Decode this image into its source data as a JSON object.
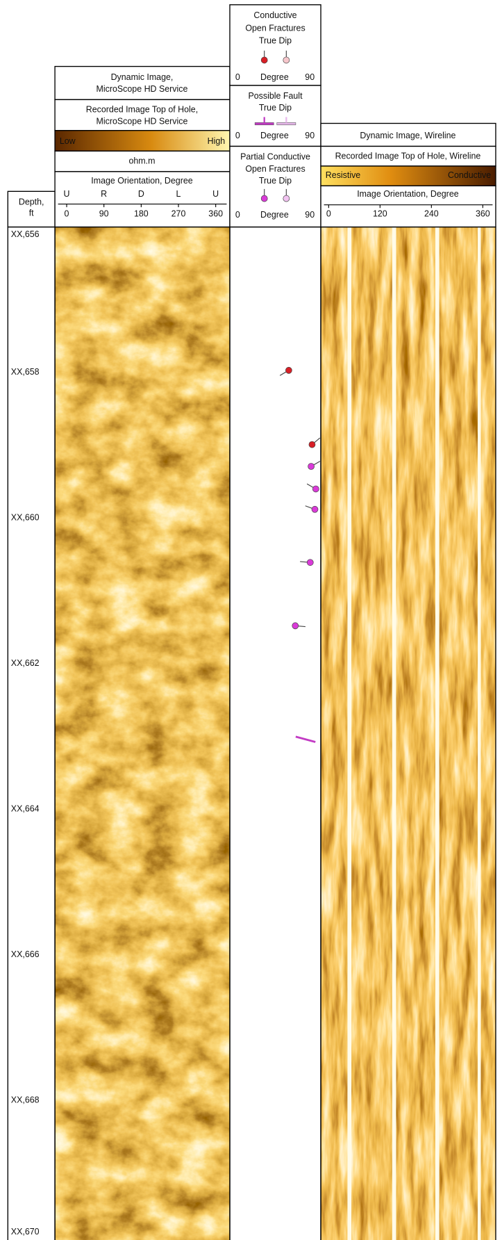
{
  "depth_track": {
    "title": [
      "Depth,",
      "ft"
    ],
    "range": [
      656,
      669.92
    ],
    "ticks": [
      {
        "value": 656,
        "label": "XX,656"
      },
      {
        "value": 658,
        "label": "XX,658"
      },
      {
        "value": 660,
        "label": "XX,660"
      },
      {
        "value": 662,
        "label": "XX,662"
      },
      {
        "value": 664,
        "label": "XX,664"
      },
      {
        "value": 666,
        "label": "XX,666"
      },
      {
        "value": 668,
        "label": "XX,668"
      },
      {
        "value": 670,
        "label": "XX,670"
      }
    ]
  },
  "microscope_track": {
    "title": [
      "Dynamic Image,",
      "MicroScope HD Service"
    ],
    "subtitle": [
      "Recorded Image Top of Hole,",
      "MicroScope HD Service"
    ],
    "scale_low": "Low",
    "scale_high": "High",
    "unit": "ohm.m",
    "orientation_title": "Image Orientation, Degree",
    "orientation_letters": [
      "U",
      "R",
      "D",
      "L",
      "U"
    ],
    "orientation_ticks": [
      0,
      90,
      180,
      270,
      360
    ]
  },
  "dip_track": {
    "axis": {
      "min": 0,
      "label": "Degree",
      "max": 90
    },
    "legends": [
      {
        "title": [
          "Conductive",
          "Open Fractures",
          "True Dip"
        ],
        "colors": [
          "#d81f26",
          "#f6c6cb"
        ]
      },
      {
        "title": [
          "Possible Fault",
          "True Dip"
        ],
        "colors": [
          "#c23bc4",
          "#e7b8ea"
        ]
      },
      {
        "title": [
          "Partial Conductive",
          "Open Fractures",
          "True Dip"
        ],
        "colors": [
          "#d93ad8",
          "#f2c3f1"
        ]
      }
    ]
  },
  "wireline_track": {
    "title": "Dynamic Image, Wireline",
    "subtitle": "Recorded Image Top of Hole, Wireline",
    "scale_left": "Resistive",
    "scale_right": "Conductive",
    "orientation_title": "Image Orientation, Degree",
    "orientation_ticks": [
      0,
      120,
      240,
      360
    ]
  },
  "dips": [
    {
      "kind": 0,
      "depth": 657.97,
      "dip": 59,
      "azimuth": 240
    },
    {
      "kind": 0,
      "depth": 658.99,
      "dip": 84,
      "azimuth": 50
    },
    {
      "kind": 2,
      "depth": 659.29,
      "dip": 83,
      "azimuth": 60
    },
    {
      "kind": 2,
      "depth": 659.6,
      "dip": 88,
      "azimuth": 300
    },
    {
      "kind": 2,
      "depth": 659.88,
      "dip": 87,
      "azimuth": 290
    },
    {
      "kind": 2,
      "depth": 660.61,
      "dip": 82,
      "azimuth": 275
    },
    {
      "kind": 2,
      "depth": 661.48,
      "dip": 66,
      "azimuth": 95
    },
    {
      "kind": 1,
      "depth": 663.04,
      "dip": 77,
      "azimuth": 285
    }
  ]
}
